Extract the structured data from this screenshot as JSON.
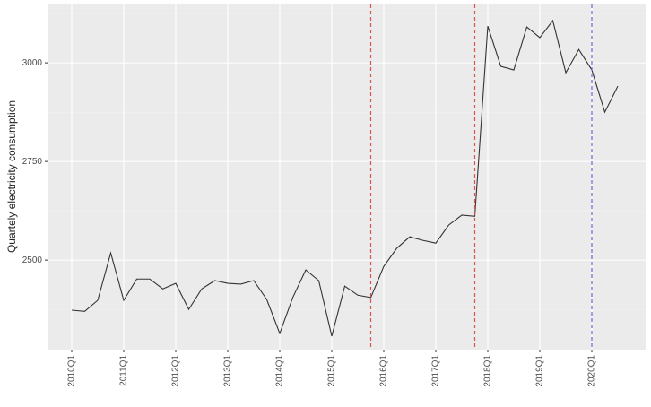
{
  "chart_data": {
    "type": "line",
    "y_label": "Quartely electricity consumption",
    "categories": [
      "2010Q1",
      null,
      null,
      null,
      "2011Q1",
      null,
      null,
      null,
      "2012Q1",
      null,
      null,
      null,
      "2013Q1",
      null,
      null,
      null,
      "2014Q1",
      null,
      null,
      null,
      "2015Q1",
      null,
      null,
      null,
      "2016Q1",
      null,
      null,
      null,
      "2017Q1",
      null,
      null,
      null,
      "2018Q1",
      null,
      null,
      null,
      "2019Q1",
      null,
      null,
      null,
      "2020Q1",
      null,
      null
    ],
    "series": [
      {
        "color": "#333333",
        "values": [
          2373,
          2370,
          2398,
          2518,
          2398,
          2452,
          2452,
          2427,
          2441,
          2375,
          2427,
          2448,
          2441,
          2439,
          2448,
          2400,
          2314,
          2405,
          2475,
          2448,
          2307,
          2434,
          2411,
          2405,
          2484,
          2530,
          2559,
          2550,
          2543,
          2589,
          2614,
          2611,
          3093,
          2991,
          2982,
          3091,
          3064,
          3107,
          2975,
          3034,
          2982,
          2875,
          2941
        ]
      }
    ],
    "vlines": [
      {
        "index": 23,
        "color": "#d9534f"
      },
      {
        "index": 31,
        "color": "#d9534f"
      },
      {
        "index": 40,
        "color": "#6a6ad9"
      }
    ],
    "ylim": [
      2273,
      3148
    ],
    "yticks": [
      2500,
      2750,
      3000
    ],
    "grid": true
  }
}
